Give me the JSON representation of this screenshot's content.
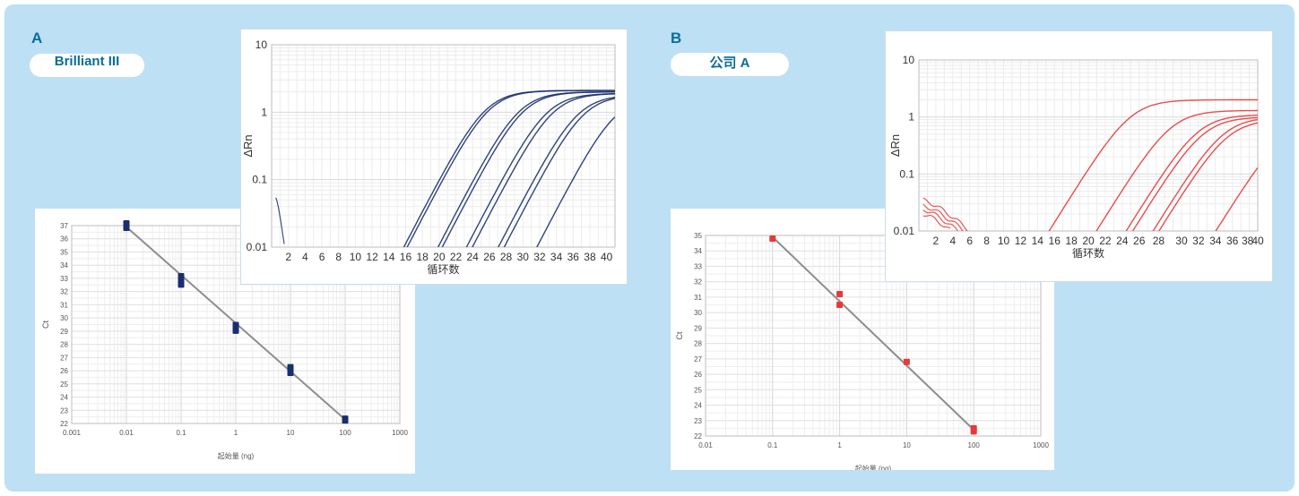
{
  "panels": {
    "a": {
      "letter": "A",
      "label": "Brilliant III"
    },
    "b": {
      "letter": "B",
      "label": "公司 A"
    }
  },
  "colors": {
    "background": "#bde0f4",
    "accent": "#0a6d96",
    "series_a": "#1a2f6e",
    "series_b": "#e8383a",
    "fit_line": "#8d8d8d"
  },
  "chart_data": [
    {
      "id": "a_std",
      "type": "scatter",
      "xscale": "log",
      "xlim": [
        0.001,
        1000
      ],
      "ylim": [
        22,
        37
      ],
      "xticks": [
        "0.001",
        "0.01",
        "0.1",
        "1",
        "10",
        "100",
        "1000"
      ],
      "yticks": [
        "22",
        "23",
        "24",
        "25",
        "26",
        "27",
        "28",
        "29",
        "30",
        "31",
        "32",
        "33",
        "34",
        "35",
        "36",
        "37"
      ],
      "xlabel": "起始量 (ng)",
      "ylabel": "Ct",
      "grid": true,
      "series": [
        {
          "x": [
            0.01,
            0.01,
            0.1,
            0.1,
            1,
            1,
            10,
            10,
            100
          ],
          "y": [
            36.9,
            37.1,
            32.6,
            33.1,
            29.1,
            29.4,
            25.9,
            26.2,
            22.3
          ]
        }
      ],
      "fit": {
        "x": [
          0.01,
          100
        ],
        "y": [
          36.9,
          22.3
        ]
      }
    },
    {
      "id": "a_amp",
      "type": "line",
      "yscale": "log",
      "xlim": [
        0,
        41
      ],
      "ylim": [
        0.01,
        10
      ],
      "xticks": [
        "2",
        "4",
        "6",
        "8",
        "10",
        "12",
        "14",
        "16",
        "18",
        "20",
        "22",
        "24",
        "26",
        "28",
        "30",
        "32",
        "34",
        "36",
        "38",
        "40"
      ],
      "yticks": [
        "0.01",
        "0.1",
        "1",
        "10"
      ],
      "xlabel": "循环数",
      "ylabel": "ΔRn",
      "grid": true,
      "series": [
        {
          "midpoint": 25.5,
          "plateau": 2.1
        },
        {
          "midpoint": 25.9,
          "plateau": 2.1
        },
        {
          "midpoint": 29.5,
          "plateau": 2.0
        },
        {
          "midpoint": 30.0,
          "plateau": 2.0
        },
        {
          "midpoint": 32.8,
          "plateau": 1.9
        },
        {
          "midpoint": 33.5,
          "plateau": 1.9
        },
        {
          "midpoint": 36.5,
          "plateau": 1.8
        },
        {
          "midpoint": 37.2,
          "plateau": 1.8
        },
        {
          "midpoint": 41.0,
          "plateau": 1.7
        }
      ]
    },
    {
      "id": "b_std",
      "type": "scatter",
      "xscale": "log",
      "xlim": [
        0.01,
        1000
      ],
      "ylim": [
        22,
        35
      ],
      "xticks": [
        "0.01",
        "0.1",
        "1",
        "10",
        "100",
        "1000"
      ],
      "yticks": [
        "22",
        "23",
        "24",
        "25",
        "26",
        "27",
        "28",
        "29",
        "30",
        "31",
        "32",
        "33",
        "34",
        "35"
      ],
      "xlabel": "起始量 (ng)",
      "ylabel": "Ct",
      "grid": true,
      "series": [
        {
          "x": [
            0.1,
            1,
            1,
            10,
            100,
            100
          ],
          "y": [
            34.8,
            31.2,
            30.5,
            26.8,
            22.3,
            22.5
          ]
        }
      ],
      "fit": {
        "x": [
          0.1,
          100
        ],
        "y": [
          34.9,
          22.4
        ]
      }
    },
    {
      "id": "b_amp",
      "type": "line",
      "yscale": "log",
      "xlim": [
        0,
        40
      ],
      "ylim": [
        0.01,
        10
      ],
      "xticks": [
        "2",
        "4",
        "6",
        "8",
        "10",
        "12",
        "14",
        "16",
        "18",
        "20",
        "22",
        "24",
        "26",
        "28",
        "30",
        "32",
        "34",
        "36",
        "38",
        "40"
      ],
      "yticks": [
        "0.01",
        "0.1",
        "1",
        "10"
      ],
      "xlabel": "循环数",
      "ylabel": "ΔRn",
      "grid": true,
      "series": [
        {
          "midpoint": 25.0,
          "plateau": 2.0
        },
        {
          "midpoint": 29.8,
          "plateau": 1.3
        },
        {
          "midpoint": 33.0,
          "plateau": 1.1
        },
        {
          "midpoint": 33.6,
          "plateau": 1.0
        },
        {
          "midpoint": 36.0,
          "plateau": 1.0
        },
        {
          "midpoint": 36.5,
          "plateau": 0.9
        },
        {
          "midpoint": 43.0,
          "plateau": 0.8
        }
      ]
    }
  ]
}
